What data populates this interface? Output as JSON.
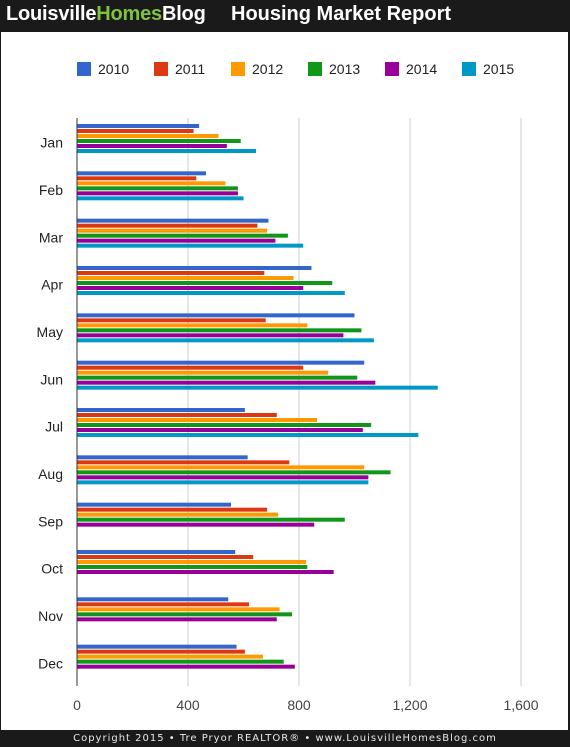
{
  "header": {
    "brand_part1": "Louisville",
    "brand_part2": "Homes",
    "brand_part3": "Blog",
    "title": "Housing Market Report"
  },
  "footer": {
    "text": "Copyright 2015 • Tre Pryor REALTOR® • www.LouisvilleHomesBlog.com"
  },
  "colors": {
    "header_bg": "#1a1a1a",
    "brand_green": "#7fc242",
    "series": [
      "#3366cc",
      "#dc3912",
      "#ff9900",
      "#109618",
      "#990099",
      "#0099c6"
    ]
  },
  "chart_data": {
    "type": "bar",
    "orientation": "horizontal",
    "categories": [
      "Jan",
      "Feb",
      "Mar",
      "Apr",
      "May",
      "Jun",
      "Jul",
      "Aug",
      "Sep",
      "Oct",
      "Nov",
      "Dec"
    ],
    "series": [
      {
        "name": "2010",
        "values": [
          440,
          465,
          690,
          845,
          1000,
          1035,
          605,
          615,
          555,
          570,
          545,
          575
        ]
      },
      {
        "name": "2011",
        "values": [
          420,
          430,
          650,
          675,
          680,
          815,
          720,
          765,
          685,
          635,
          620,
          605
        ]
      },
      {
        "name": "2012",
        "values": [
          510,
          535,
          685,
          780,
          830,
          905,
          865,
          1035,
          725,
          825,
          730,
          670
        ]
      },
      {
        "name": "2013",
        "values": [
          590,
          580,
          760,
          920,
          1025,
          1010,
          1060,
          1130,
          965,
          830,
          775,
          745
        ]
      },
      {
        "name": "2014",
        "values": [
          540,
          580,
          715,
          815,
          960,
          1075,
          1030,
          1050,
          855,
          925,
          720,
          785
        ]
      },
      {
        "name": "2015",
        "values": [
          645,
          600,
          815,
          965,
          1070,
          1300,
          1230,
          1050,
          null,
          null,
          null,
          null
        ]
      }
    ],
    "xlim": [
      0,
      1600
    ],
    "xticks": [
      0,
      400,
      800,
      1200,
      1600
    ],
    "xtick_labels": [
      "0",
      "400",
      "800",
      "1,200",
      "1,600"
    ],
    "grid": true,
    "legend_position": "top"
  }
}
